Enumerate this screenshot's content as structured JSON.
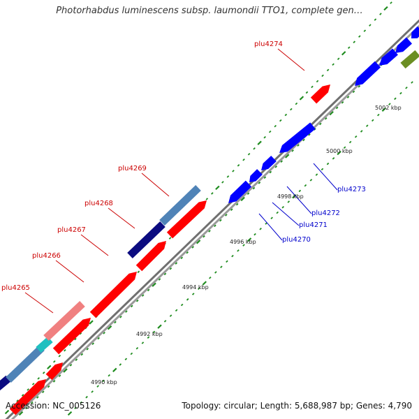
{
  "title": "Photorhabdus luminescens subsp. laumondii TTO1, complete gen…",
  "footer": {
    "accession": "Accession: NC_005126",
    "summary": "Topology: circular; Length: 5,688,987 bp; Genes: 4,790"
  },
  "colors": {
    "backbone": "#8c8c8c",
    "ticks": "#1e8c1e",
    "forward_label": "#cc0000",
    "reverse_label": "#0000cc"
  },
  "scale_labels": [
    "4990 kbp",
    "4992 kbp",
    "4994 kbp",
    "4996 kbp",
    "4998 kbp",
    "5000 kbp",
    "5002 kbp"
  ],
  "genes_forward": [
    {
      "label": "plu4265",
      "color": "#ff0000"
    },
    {
      "label": "plu4266",
      "color": "#ff0000"
    },
    {
      "label": "plu4267",
      "color": "#ff0000"
    },
    {
      "label": "plu4268",
      "color": "#ff0000"
    },
    {
      "label": "plu4269",
      "color": "#ff0000"
    },
    {
      "label": "plu4274",
      "color": "#ff0000"
    }
  ],
  "genes_reverse": [
    {
      "label": "plu4270",
      "color": "#0000ff"
    },
    {
      "label": "plu4271",
      "color": "#0000ff"
    },
    {
      "label": "plu4272",
      "color": "#0000ff"
    },
    {
      "label": "plu4273",
      "color": "#0000ff"
    }
  ],
  "feature_colors": {
    "steelblue": "#4f83b7",
    "navy": "#0b0b80",
    "pink": "#f08080",
    "cyan": "#20c0c0",
    "olive": "#6b8e23"
  }
}
